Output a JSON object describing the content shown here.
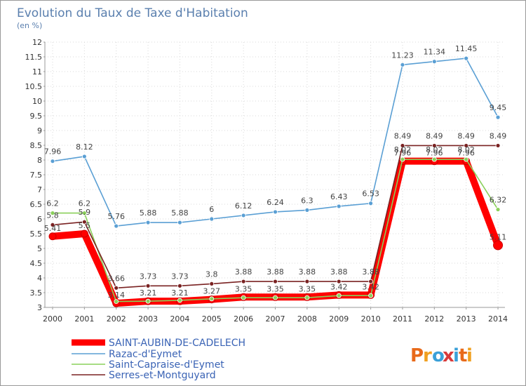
{
  "chart_data": {
    "type": "line",
    "title": "Evolution du Taux de Taxe d'Habitation",
    "subtitle": "(en %)",
    "xlabel": "",
    "ylabel": "",
    "ylim": [
      3,
      12
    ],
    "yticks": [
      "3",
      "3.5",
      "4",
      "4.5",
      "5",
      "5.5",
      "6",
      "6.5",
      "7",
      "7.5",
      "8",
      "8.5",
      "9",
      "9.5",
      "10",
      "10.5",
      "11",
      "11.5",
      "12"
    ],
    "categories": [
      "2000",
      "2001",
      "2002",
      "2003",
      "2004",
      "2005",
      "2006",
      "2007",
      "2008",
      "2009",
      "2010",
      "2011",
      "2012",
      "2013",
      "2014"
    ],
    "grid": true,
    "legend_position": "bottom-left",
    "series": [
      {
        "name": "SAINT-AUBIN-DE-CADELECH",
        "color": "#ff0000",
        "values": [
          5.41,
          5.5,
          3.14,
          3.21,
          3.21,
          3.27,
          3.35,
          3.35,
          3.35,
          3.42,
          3.42,
          7.96,
          7.96,
          7.96,
          5.11
        ],
        "labels": [
          "5.41",
          "5.5",
          "3.14",
          "3.21",
          "3.21",
          "3.27",
          "3.35",
          "3.35",
          "3.35",
          "3.42",
          "3.42",
          "7.96",
          "7.96",
          "7.96",
          "5.11"
        ]
      },
      {
        "name": "Razac-d'Eymet",
        "color": "#5a9fd4",
        "values": [
          7.96,
          8.12,
          5.76,
          5.88,
          5.88,
          6,
          6.12,
          6.24,
          6.3,
          6.43,
          6.53,
          11.23,
          11.34,
          11.45,
          9.45
        ],
        "labels": [
          "7.96",
          "8.12",
          "5.76",
          "5.88",
          "5.88",
          "6",
          "6.12",
          "6.24",
          "6.3",
          "6.43",
          "6.53",
          "11.23",
          "11.34",
          "11.45",
          "9.45"
        ]
      },
      {
        "name": "Saint-Capraise-d'Eymet",
        "color": "#8ad05a",
        "values": [
          6.2,
          6.2,
          3.2,
          3.21,
          3.24,
          3.29,
          3.33,
          3.33,
          3.33,
          3.4,
          3.4,
          8.02,
          8.02,
          8.02,
          6.32
        ],
        "labels": [
          "6.2",
          "6.2",
          "",
          "",
          "",
          "",
          "",
          "",
          "",
          "",
          "",
          "8.02",
          "8.02",
          "8.02",
          "6.32"
        ]
      },
      {
        "name": "Serres-et-Montguyard",
        "color": "#7a2222",
        "values": [
          5.8,
          5.9,
          3.66,
          3.73,
          3.73,
          3.8,
          3.88,
          3.88,
          3.88,
          3.88,
          3.88,
          8.49,
          8.49,
          8.49,
          8.49
        ],
        "labels": [
          "5.8",
          "5.9",
          "3.66",
          "3.73",
          "3.73",
          "3.8",
          "3.88",
          "3.88",
          "3.88",
          "3.88",
          "3.88",
          "8.49",
          "8.49",
          "8.49",
          "8.49"
        ]
      }
    ]
  },
  "logo": {
    "text": "Proxiti",
    "colors": [
      "#e86a1a",
      "#f0a020",
      "#3aa0d8",
      "#d83a3a",
      "#3aa0d8",
      "#e86a1a",
      "#f0a020"
    ]
  }
}
